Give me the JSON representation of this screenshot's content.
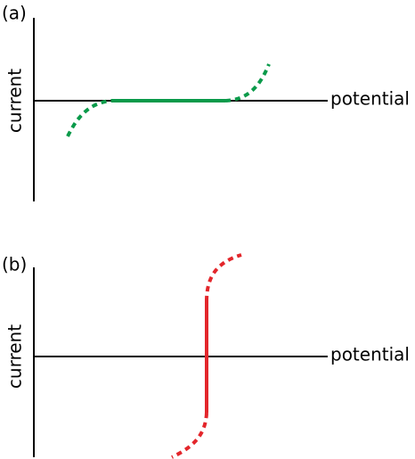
{
  "panels": [
    {
      "label": "(a)",
      "y_label": "current",
      "x_label": "potential"
    },
    {
      "label": "(b)",
      "y_label": "current",
      "x_label": "potential"
    }
  ]
}
